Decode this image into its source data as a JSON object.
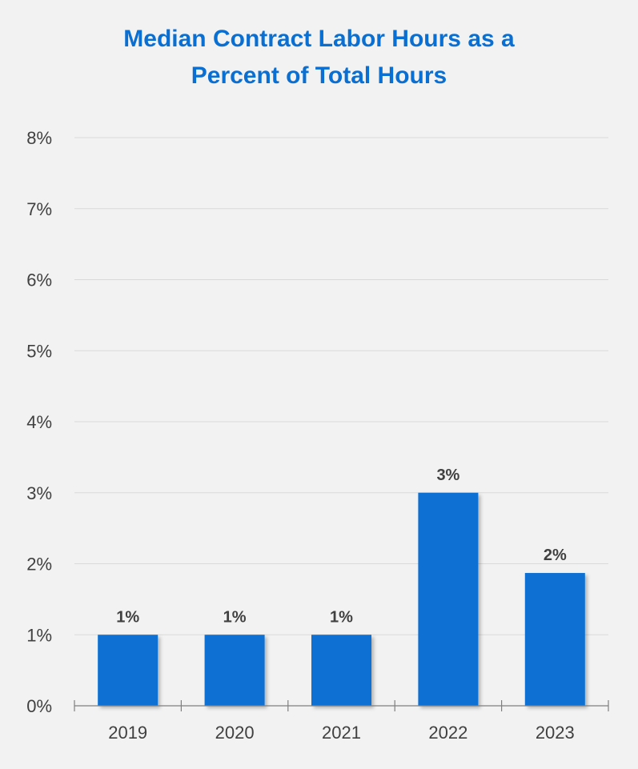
{
  "chart_data": {
    "type": "bar",
    "title_line1": "Median Contract Labor Hours as a",
    "title_line2": "Percent of Total Hours",
    "xlabel": "",
    "ylabel": "",
    "categories": [
      "2019",
      "2020",
      "2021",
      "2022",
      "2023"
    ],
    "values": [
      1.0,
      1.0,
      1.0,
      3.0,
      1.87
    ],
    "data_labels": [
      "1%",
      "1%",
      "1%",
      "3%",
      "2%"
    ],
    "ylim": [
      0,
      8
    ],
    "yticks": [
      0,
      1,
      2,
      3,
      4,
      5,
      6,
      7,
      8
    ],
    "ytick_labels": [
      "0%",
      "1%",
      "2%",
      "3%",
      "4%",
      "5%",
      "6%",
      "7%",
      "8%"
    ],
    "grid": true,
    "legend": "none",
    "colors": {
      "bar": "#0a6fd2",
      "title": "#0a6fd2",
      "grid": "#d9d9d9",
      "axis": "#7f7f7f",
      "text": "#404040",
      "background": "#f2f2f2"
    }
  }
}
